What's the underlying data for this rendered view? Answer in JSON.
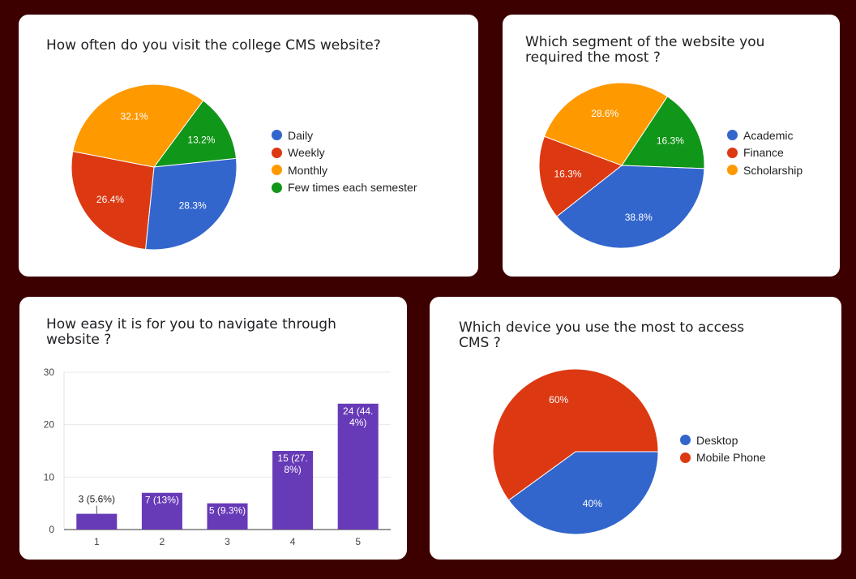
{
  "chart_data": [
    {
      "type": "pie",
      "title": "How often do you visit the college CMS website?",
      "categories": [
        "Daily",
        "Weekly",
        "Monthly",
        "Few times each semester"
      ],
      "values": [
        28.3,
        26.4,
        32.1,
        13.2
      ],
      "labels": [
        "28.3%",
        "26.4%",
        "32.1%",
        "13.2%"
      ],
      "colors": [
        "#3366cc",
        "#dc3912",
        "#ff9900",
        "#109618"
      ],
      "legend": "right"
    },
    {
      "type": "pie",
      "title_lines": [
        "Which segment of the website you",
        "required the most ?"
      ],
      "categories": [
        "Academic",
        "Finance",
        "Scholarship",
        ""
      ],
      "values": [
        38.8,
        16.3,
        28.6,
        16.3
      ],
      "labels": [
        "38.8%",
        "16.3%",
        "28.6%",
        "16.3%"
      ],
      "colors": [
        "#3366cc",
        "#dc3912",
        "#ff9900",
        "#109618"
      ],
      "legend": "right"
    },
    {
      "type": "bar",
      "title_lines": [
        "How easy it is for you to navigate through",
        "website ?"
      ],
      "categories": [
        "1",
        "2",
        "3",
        "4",
        "5"
      ],
      "values": [
        3,
        7,
        5,
        15,
        24
      ],
      "value_labels": [
        [
          "3 (5.6%)"
        ],
        [
          "7 (13%)"
        ],
        [
          "5 (9.3%)"
        ],
        [
          "15 (27.",
          "8%)"
        ],
        [
          "24 (44.",
          "4%)"
        ]
      ],
      "ylim": [
        0,
        30
      ],
      "yticks": [
        "0",
        "10",
        "20",
        "30"
      ],
      "grid": true,
      "color": "#673ab7"
    },
    {
      "type": "pie",
      "title_lines": [
        "Which device you use the most to access",
        "CMS ?"
      ],
      "categories": [
        "Desktop",
        "Mobile Phone"
      ],
      "values": [
        40,
        60
      ],
      "labels": [
        "40%",
        "60%"
      ],
      "colors": [
        "#3366cc",
        "#dc3912"
      ],
      "legend": "right"
    }
  ]
}
